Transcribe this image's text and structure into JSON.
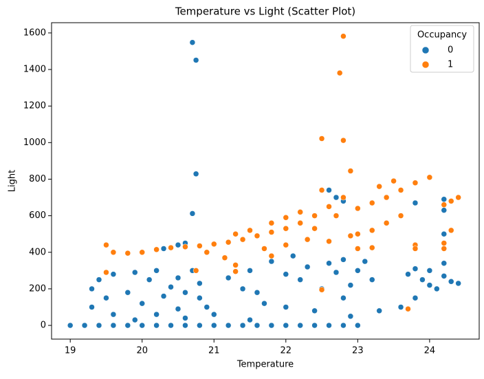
{
  "chart_data": {
    "type": "scatter",
    "title": "Temperature vs Light (Scatter Plot)",
    "x_label": "Temperature",
    "y_label": "Light",
    "legend_title": "Occupancy",
    "legend": "upper right",
    "xlim": [
      18.74,
      24.69
    ],
    "ylim": [
      -75,
      1656
    ],
    "xticks": [
      19,
      20,
      21,
      22,
      23,
      24
    ],
    "yticks": [
      0,
      200,
      400,
      600,
      800,
      1000,
      1200,
      1400,
      1600
    ],
    "series": [
      {
        "name": "0",
        "color": "#1f77b4",
        "x": [
          20.7,
          20.75,
          20.75,
          20.7,
          19.0,
          19.2,
          19.4,
          19.6,
          19.8,
          20.0,
          20.2,
          20.4,
          20.6,
          20.8,
          21.0,
          21.2,
          21.4,
          21.6,
          21.8,
          22.0,
          22.2,
          22.4,
          22.6,
          22.8,
          23.0,
          19.3,
          19.3,
          19.5,
          19.6,
          19.8,
          19.9,
          20.0,
          20.1,
          20.2,
          20.3,
          20.4,
          20.5,
          20.5,
          20.6,
          20.6,
          20.7,
          20.8,
          20.8,
          20.9,
          21.0,
          19.6,
          19.4,
          19.9,
          20.2,
          21.2,
          21.4,
          21.5,
          21.6,
          21.8,
          22.0,
          22.1,
          22.2,
          22.3,
          22.5,
          22.6,
          22.7,
          22.8,
          22.9,
          23.0,
          23.1,
          23.2,
          21.7,
          22.0,
          22.4,
          22.8,
          23.3,
          23.6,
          23.8,
          23.9,
          24.0,
          24.1,
          24.2,
          24.3,
          24.4,
          23.7,
          23.8,
          24.0,
          22.9,
          21.5,
          20.3,
          20.5,
          20.6,
          22.7,
          22.8,
          23.8,
          24.2,
          24.2,
          24.2,
          24.2,
          22.6
        ],
        "values": [
          1548,
          1451,
          829,
          612,
          0,
          0,
          0,
          0,
          0,
          0,
          0,
          0,
          0,
          0,
          0,
          0,
          0,
          0,
          0,
          0,
          0,
          0,
          0,
          0,
          0,
          100,
          200,
          150,
          60,
          180,
          290,
          120,
          250,
          300,
          160,
          210,
          90,
          260,
          180,
          40,
          300,
          150,
          230,
          100,
          60,
          280,
          250,
          30,
          60,
          260,
          200,
          300,
          180,
          350,
          280,
          380,
          250,
          320,
          200,
          340,
          290,
          360,
          220,
          300,
          350,
          250,
          120,
          100,
          80,
          150,
          80,
          100,
          150,
          250,
          300,
          200,
          270,
          240,
          230,
          280,
          310,
          220,
          50,
          30,
          420,
          440,
          450,
          700,
          680,
          670,
          690,
          630,
          500,
          340,
          740
        ]
      },
      {
        "name": "1",
        "color": "#ff7f0e",
        "x": [
          22.8,
          22.75,
          22.5,
          22.8,
          22.9,
          19.5,
          19.6,
          19.8,
          20.0,
          20.2,
          20.4,
          20.6,
          20.8,
          21.0,
          21.2,
          21.4,
          21.6,
          21.8,
          22.0,
          22.2,
          22.4,
          22.6,
          22.8,
          22.5,
          21.5,
          21.8,
          22.0,
          22.2,
          22.0,
          22.3,
          22.6,
          22.9,
          23.0,
          23.2,
          23.4,
          23.6,
          23.2,
          23.4,
          23.6,
          23.8,
          24.0,
          23.5,
          23.3,
          23.0,
          22.7,
          22.4,
          21.7,
          21.3,
          20.9,
          23.0,
          23.2,
          24.2,
          24.2,
          24.2,
          24.3,
          24.4,
          24.3,
          23.8,
          23.8,
          23.7,
          19.5,
          21.3,
          21.3,
          21.15,
          22.5,
          20.75,
          21.8
        ],
        "values": [
          1582,
          1381,
          1022,
          1012,
          845,
          440,
          400,
          395,
          400,
          415,
          425,
          430,
          435,
          445,
          455,
          470,
          490,
          510,
          530,
          560,
          600,
          650,
          700,
          740,
          520,
          560,
          590,
          620,
          440,
          470,
          460,
          490,
          500,
          520,
          560,
          600,
          670,
          700,
          740,
          780,
          810,
          790,
          760,
          640,
          600,
          530,
          420,
          500,
          400,
          420,
          425,
          660,
          450,
          420,
          520,
          700,
          680,
          440,
          420,
          90,
          290,
          330,
          295,
          370,
          195,
          300,
          380
        ]
      }
    ]
  }
}
